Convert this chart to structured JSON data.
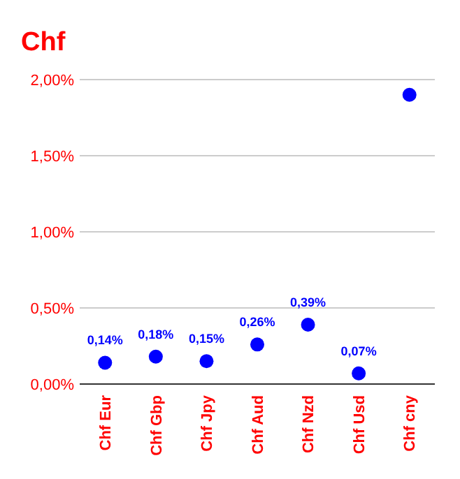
{
  "chart_data": {
    "type": "scatter",
    "title": "Chf",
    "categories": [
      "Chf Eur",
      "Chf Gbp",
      "Chf Jpy",
      "Chf Aud",
      "Chf Nzd",
      "Chf Usd",
      "Chf cny"
    ],
    "series": [
      {
        "color": "#0000ff",
        "values": [
          0.14,
          0.18,
          0.15,
          0.26,
          0.39,
          0.07,
          1.9
        ],
        "value_labels": [
          "0,14%",
          "0,18%",
          "0,15%",
          "0,26%",
          "0,39%",
          "0,07%",
          null
        ]
      }
    ],
    "ylim": [
      0,
      2
    ],
    "yticks": [
      {
        "value": 0,
        "label": "0,00%"
      },
      {
        "value": 0.5,
        "label": "0,50%"
      },
      {
        "value": 1,
        "label": "1,00%"
      },
      {
        "value": 1.5,
        "label": "1,50%"
      },
      {
        "value": 2,
        "label": "2,00%"
      }
    ],
    "grid": "y",
    "marker": "circle"
  }
}
